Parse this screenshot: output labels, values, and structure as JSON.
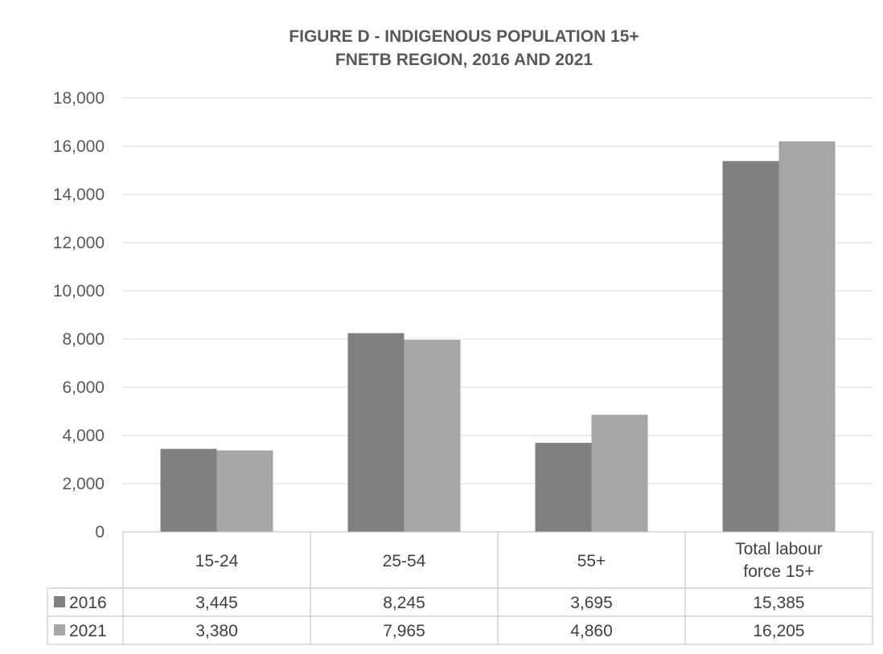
{
  "chart_data": {
    "type": "bar",
    "title_lines": [
      "FIGURE D - INDIGENOUS POPULATION 15+",
      "FNETB REGION, 2016 AND 2021"
    ],
    "categories": [
      [
        "15-24"
      ],
      [
        "25-54"
      ],
      [
        "55+"
      ],
      [
        "Total labour",
        "force 15+"
      ]
    ],
    "series": [
      {
        "name": "2016",
        "values": [
          3445,
          8245,
          3695,
          15385
        ],
        "labels": [
          "3,445",
          "8,245",
          "3,695",
          "15,385"
        ],
        "color": "#808080"
      },
      {
        "name": "2021",
        "values": [
          3380,
          7965,
          4860,
          16205
        ],
        "labels": [
          "3,380",
          "7,965",
          "4,860",
          "16,205"
        ],
        "color": "#a6a6a6"
      }
    ],
    "yticks": [
      "0",
      "2,000",
      "4,000",
      "6,000",
      "8,000",
      "10,000",
      "12,000",
      "14,000",
      "16,000",
      "18,000"
    ],
    "ylim": [
      0,
      18000
    ],
    "grid": true,
    "legend": "data-table",
    "colors": {
      "gridline": "#d9d9d9",
      "border": "#bfbfbf",
      "text": "#404040"
    }
  }
}
